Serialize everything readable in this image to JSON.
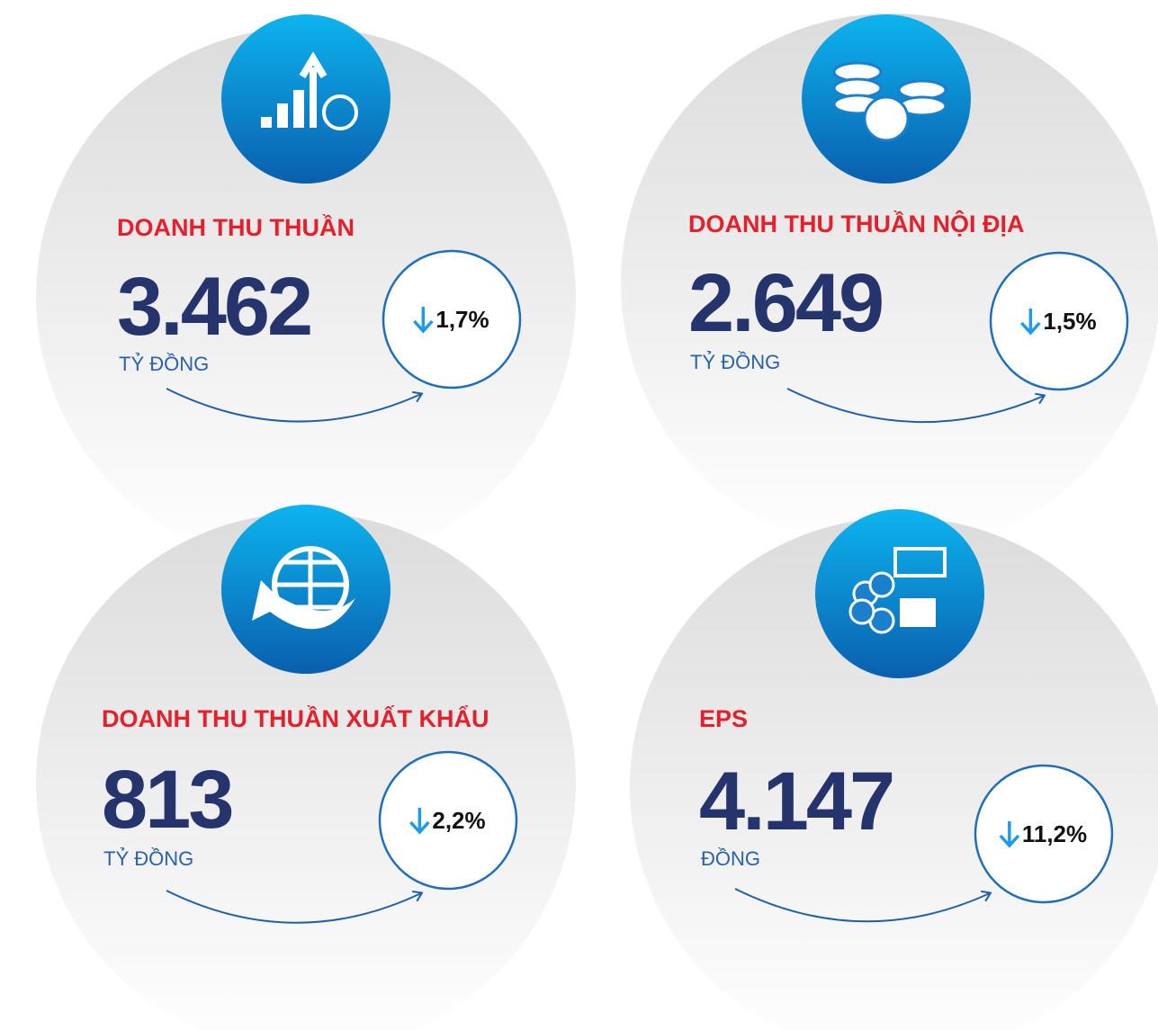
{
  "cards": [
    {
      "title": "DOANH THU THUẦN",
      "value": "3.462",
      "unit": "TỶ ĐỒNG",
      "change": "1,7%"
    },
    {
      "title": "DOANH THU THUẦN NỘI ĐỊA",
      "value": "2.649",
      "unit": "TỶ ĐỒNG",
      "change": "1,5%"
    },
    {
      "title": "DOANH THU THUẦN XUẤT KHẨU",
      "value": "813",
      "unit": "TỶ ĐỒNG",
      "change": "2,2%"
    },
    {
      "title": "EPS",
      "value": "4.147",
      "unit": "ĐỒNG",
      "change": "11,2%"
    }
  ]
}
